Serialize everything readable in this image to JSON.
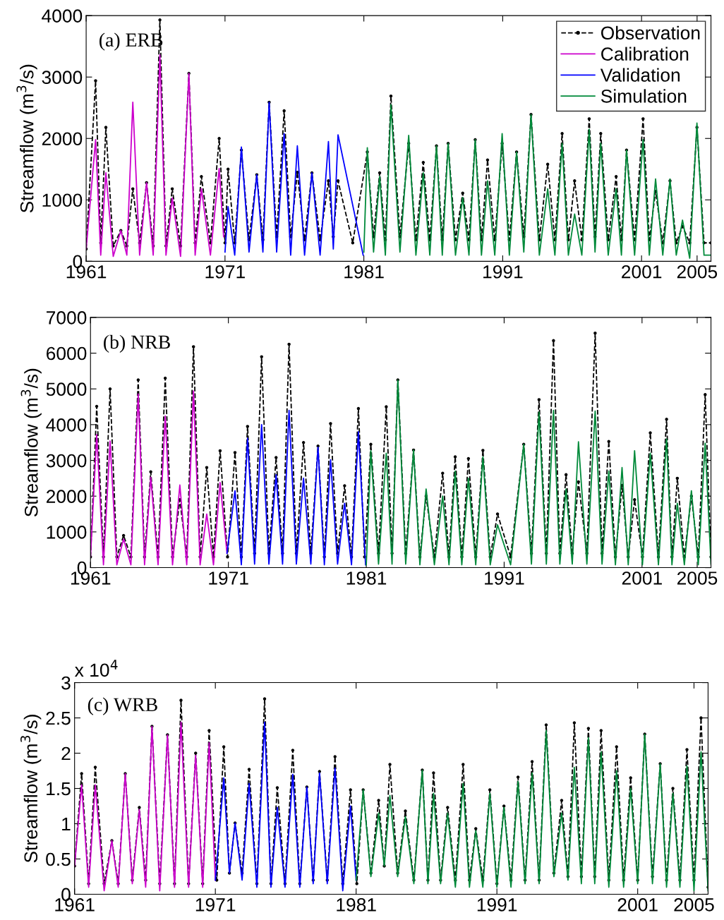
{
  "chart_data": [
    {
      "type": "line",
      "title": "(a) ERB",
      "ylabel": "Streamflow (m$^{3}$/s)",
      "xlim": [
        1961,
        2006
      ],
      "xticks": [
        1961,
        1971,
        1981,
        1991,
        2001,
        2005
      ],
      "ylim": [
        0,
        4000
      ],
      "yticks": [
        0,
        1000,
        2000,
        3000,
        4000
      ],
      "grid": false,
      "legend": "top right",
      "series": [
        {
          "name": "Observation",
          "color": "#000000",
          "line_style": "dashed",
          "marker": "circle",
          "x": [
            1961.0,
            1961.68,
            1962.05,
            1962.42,
            1962.95,
            1963.5,
            1963.93,
            1964.36,
            1964.85,
            1965.35,
            1965.83,
            1966.31,
            1966.75,
            1967.2,
            1967.8,
            1968.4,
            1968.85,
            1969.3,
            1969.95,
            1970.58,
            1971.0,
            1971.22,
            1971.7,
            1972.18,
            1972.73,
            1973.29,
            1973.73,
            1974.18,
            1974.72,
            1975.26,
            1975.73,
            1976.21,
            1976.73,
            1977.26,
            1977.85,
            1978.45,
            1978.8,
            1979.14,
            1980.2,
            1981.25,
            1981.7,
            1982.14,
            1982.55,
            1982.95,
            1983.6,
            1984.23,
            1984.75,
            1985.28,
            1985.75,
            1986.23,
            1986.65,
            1987.07,
            1987.6,
            1988.12,
            1988.57,
            1989.02,
            1989.47,
            1989.91,
            1990.43,
            1990.96,
            1991.48,
            1992.0,
            1992.52,
            1993.04,
            1993.64,
            1994.24,
            1994.76,
            1995.28,
            1995.73,
            1996.18,
            1996.7,
            1997.23,
            1997.65,
            1998.06,
            1998.6,
            1999.17,
            1999.55,
            1999.92,
            2000.5,
            2001.11,
            2001.56,
            2002.01,
            2002.53,
            2003.05,
            2003.5,
            2003.95,
            2004.47,
            2004.99,
            2005.5,
            2006.0
          ],
          "values": [
            200,
            2940,
            300,
            2180,
            250,
            500,
            250,
            1180,
            300,
            1280,
            250,
            3930,
            250,
            1180,
            250,
            3060,
            300,
            1380,
            300,
            2000,
            300,
            1500,
            300,
            1810,
            350,
            1410,
            350,
            2590,
            400,
            2450,
            400,
            1450,
            350,
            1440,
            350,
            1310,
            400,
            1310,
            300,
            1780,
            400,
            1440,
            350,
            2690,
            400,
            1920,
            350,
            1610,
            350,
            1880,
            350,
            1920,
            350,
            1110,
            350,
            1980,
            350,
            1650,
            350,
            1920,
            350,
            1780,
            400,
            2390,
            350,
            1580,
            350,
            2080,
            350,
            1310,
            350,
            2320,
            400,
            2080,
            350,
            1380,
            350,
            1810,
            350,
            2320,
            350,
            1140,
            300,
            1310,
            300,
            570,
            300,
            2180,
            300,
            300
          ]
        },
        {
          "name": "Calibration",
          "color": "#cc00cc",
          "line_style": "solid",
          "marker": "none",
          "x": [
            1961.0,
            1961.68,
            1962.05,
            1962.42,
            1962.95,
            1963.5,
            1963.93,
            1964.36,
            1964.85,
            1965.35,
            1965.83,
            1966.31,
            1966.75,
            1967.2,
            1967.8,
            1968.4,
            1968.85,
            1969.3,
            1969.95,
            1970.58,
            1970.9
          ],
          "values": [
            200,
            1980,
            100,
            1440,
            80,
            500,
            100,
            2590,
            100,
            1280,
            100,
            3360,
            100,
            1030,
            80,
            3060,
            100,
            1180,
            100,
            1510,
            400
          ]
        },
        {
          "name": "Validation",
          "color": "#0000ff",
          "line_style": "solid",
          "marker": "none",
          "x": [
            1971.0,
            1971.22,
            1971.7,
            1972.18,
            1972.73,
            1973.29,
            1973.73,
            1974.18,
            1974.72,
            1975.26,
            1975.73,
            1976.21,
            1976.73,
            1977.26,
            1977.85,
            1978.45,
            1978.8,
            1979.14,
            1980.95
          ],
          "values": [
            150,
            890,
            100,
            1860,
            150,
            1410,
            150,
            2590,
            150,
            2080,
            100,
            1880,
            100,
            1440,
            100,
            1950,
            200,
            2060,
            100
          ]
        },
        {
          "name": "Simulation",
          "color": "#008a3a",
          "line_style": "solid",
          "marker": "none",
          "x": [
            1981.0,
            1981.25,
            1981.7,
            1982.14,
            1982.55,
            1982.95,
            1983.6,
            1984.23,
            1984.75,
            1985.28,
            1985.75,
            1986.23,
            1986.65,
            1987.07,
            1987.6,
            1988.12,
            1988.57,
            1989.02,
            1989.47,
            1989.91,
            1990.43,
            1990.96,
            1991.48,
            1992.0,
            1992.52,
            1993.04,
            1993.64,
            1994.24,
            1994.76,
            1995.28,
            1995.73,
            1996.18,
            1996.7,
            1997.23,
            1997.65,
            1998.06,
            1998.6,
            1999.17,
            1999.55,
            1999.92,
            2000.5,
            2001.11,
            2001.56,
            2002.01,
            2002.53,
            2003.05,
            2003.5,
            2003.95,
            2004.47,
            2004.99,
            2005.5,
            2006.0
          ],
          "values": [
            150,
            1850,
            150,
            1380,
            100,
            2550,
            150,
            2050,
            100,
            1440,
            100,
            1880,
            100,
            1920,
            100,
            1040,
            100,
            1980,
            100,
            1310,
            100,
            2080,
            100,
            1780,
            150,
            2390,
            100,
            1180,
            100,
            1920,
            100,
            770,
            100,
            2150,
            150,
            1920,
            100,
            1180,
            100,
            1810,
            100,
            1980,
            100,
            1340,
            100,
            1340,
            100,
            670,
            50,
            2250,
            100,
            100
          ]
        }
      ]
    },
    {
      "type": "line",
      "title": "(b) NRB",
      "ylabel": "Streamflow (m$^{3}$/s)",
      "xlim": [
        1961,
        2006
      ],
      "xticks": [
        1961,
        1971,
        1981,
        1991,
        2001,
        2005
      ],
      "ylim": [
        0,
        7000
      ],
      "yticks": [
        0,
        1000,
        2000,
        3000,
        4000,
        5000,
        6000,
        7000
      ],
      "grid": false,
      "series": [
        {
          "color": "#000000",
          "line_style": "dashed",
          "marker": "circle",
          "x": [
            1961.0,
            1961.45,
            1961.94,
            1962.42,
            1962.91,
            1963.4,
            1963.93,
            1964.46,
            1964.92,
            1965.37,
            1965.9,
            1966.42,
            1966.95,
            1967.48,
            1967.98,
            1968.47,
            1968.95,
            1969.43,
            1969.92,
            1970.4,
            1970.94,
            1971.48,
            1971.94,
            1972.39,
            1972.9,
            1973.41,
            1973.94,
            1974.46,
            1974.93,
            1975.4,
            1975.93,
            1976.45,
            1976.98,
            1977.5,
            1977.96,
            1978.41,
            1978.92,
            1979.43,
            1979.93,
            1980.43,
            1980.88,
            1981.33,
            1981.89,
            1982.45,
            1982.87,
            1983.29,
            1983.86,
            1984.43,
            1984.89,
            1985.34,
            1985.94,
            1986.54,
            1987.0,
            1987.45,
            1987.93,
            1988.41,
            1988.94,
            1989.46,
            1989.99,
            1990.52,
            1991.47,
            1992.42,
            1992.98,
            1993.53,
            1994.06,
            1994.58,
            1995.04,
            1995.49,
            1995.94,
            1996.39,
            1997.0,
            1997.6,
            1998.1,
            1998.59,
            1999.07,
            1999.55,
            2000.0,
            2000.46,
            2001.03,
            2001.6,
            2002.19,
            2002.78,
            2003.17,
            2003.56,
            2004.07,
            2004.58,
            2005.08,
            2005.58,
            2006.0
          ],
          "values": [
            300,
            4510,
            300,
            5000,
            300,
            900,
            300,
            5250,
            300,
            2680,
            300,
            5300,
            300,
            1900,
            300,
            6180,
            300,
            2800,
            300,
            3270,
            300,
            3220,
            300,
            3950,
            400,
            5900,
            400,
            3080,
            400,
            6250,
            400,
            3500,
            400,
            3400,
            300,
            4030,
            400,
            2290,
            300,
            4450,
            300,
            3450,
            400,
            4500,
            400,
            5250,
            400,
            3290,
            300,
            2000,
            300,
            2640,
            300,
            3100,
            300,
            3050,
            300,
            3280,
            300,
            1500,
            300,
            3450,
            400,
            4700,
            400,
            6350,
            400,
            2600,
            400,
            2400,
            400,
            6560,
            400,
            3530,
            300,
            2300,
            300,
            1900,
            300,
            3770,
            300,
            4150,
            300,
            2500,
            300,
            2000,
            300,
            4840,
            300
          ]
        },
        {
          "color": "#cc00cc",
          "line_style": "solid",
          "marker": "none",
          "x": [
            1961.0,
            1961.45,
            1961.94,
            1962.42,
            1962.91,
            1963.4,
            1963.93,
            1964.46,
            1964.92,
            1965.37,
            1965.9,
            1966.42,
            1966.95,
            1967.48,
            1967.98,
            1968.47,
            1968.95,
            1969.43,
            1969.92,
            1970.4,
            1970.9
          ],
          "values": [
            300,
            3720,
            80,
            3540,
            80,
            800,
            80,
            4860,
            80,
            2530,
            80,
            4240,
            80,
            2310,
            80,
            4940,
            80,
            1500,
            80,
            2380,
            400
          ]
        },
        {
          "color": "#0000ff",
          "line_style": "solid",
          "marker": "none",
          "x": [
            1970.9,
            1971.48,
            1971.94,
            1972.39,
            1972.9,
            1973.41,
            1973.94,
            1974.46,
            1974.93,
            1975.4,
            1975.93,
            1976.45,
            1976.98,
            1977.5,
            1977.96,
            1978.41,
            1978.92,
            1979.43,
            1979.93,
            1980.43,
            1980.95
          ],
          "values": [
            400,
            2150,
            80,
            3620,
            100,
            4000,
            100,
            2600,
            100,
            4400,
            100,
            2500,
            100,
            3370,
            80,
            3020,
            100,
            1800,
            80,
            3800,
            80
          ]
        },
        {
          "color": "#008a3a",
          "line_style": "solid",
          "marker": "none",
          "x": [
            1981.0,
            1981.33,
            1981.89,
            1982.45,
            1982.87,
            1983.29,
            1983.86,
            1984.43,
            1984.89,
            1985.34,
            1985.94,
            1986.54,
            1987.0,
            1987.45,
            1987.93,
            1988.41,
            1988.94,
            1989.46,
            1989.99,
            1990.52,
            1991.47,
            1992.42,
            1992.98,
            1993.53,
            1994.06,
            1994.58,
            1995.04,
            1995.49,
            1995.94,
            1996.39,
            1997.0,
            1997.6,
            1998.1,
            1998.59,
            1999.07,
            1999.55,
            2000.0,
            2000.46,
            2001.03,
            2001.6,
            2002.19,
            2002.78,
            2003.17,
            2003.56,
            2004.07,
            2004.58,
            2005.08,
            2005.58,
            2006.0
          ],
          "values": [
            80,
            3270,
            100,
            3200,
            100,
            5250,
            100,
            3290,
            80,
            2200,
            80,
            2000,
            80,
            2700,
            80,
            2500,
            80,
            3100,
            80,
            1200,
            80,
            3450,
            100,
            4350,
            100,
            4400,
            100,
            2200,
            100,
            3520,
            100,
            4380,
            100,
            2700,
            80,
            2800,
            80,
            3270,
            80,
            3200,
            80,
            3600,
            80,
            1800,
            80,
            2150,
            80,
            3480,
            100
          ]
        }
      ]
    },
    {
      "type": "line",
      "title": "(c) WRB",
      "ylabel": "Streamflow (m$^{3}$/s)",
      "annotations": [
        "x 10$^{4}$"
      ],
      "xlim": [
        1961,
        2006
      ],
      "xticks": [
        1961,
        1971,
        1981,
        1991,
        2001,
        2005
      ],
      "ylim": [
        0,
        3
      ],
      "yticks": [
        0,
        0.5,
        1,
        1.5,
        2,
        2.5,
        3
      ],
      "grid": false,
      "series": [
        {
          "color": "#000000",
          "line_style": "dashed",
          "marker": "circle",
          "x": [
            1961.0,
            1961.5,
            1962.0,
            1962.47,
            1963.1,
            1963.65,
            1964.1,
            1964.6,
            1965.1,
            1965.6,
            1966.05,
            1966.5,
            1967.05,
            1967.6,
            1968.1,
            1968.56,
            1969.1,
            1969.6,
            1970.1,
            1970.56,
            1971.1,
            1971.6,
            1972.0,
            1972.4,
            1972.9,
            1973.4,
            1973.95,
            1974.5,
            1974.95,
            1975.4,
            1975.95,
            1976.5,
            1977.0,
            1977.5,
            1977.95,
            1978.4,
            1978.95,
            1979.5,
            1980.05,
            1980.6,
            1981.05,
            1981.5,
            1982.05,
            1982.6,
            1983.0,
            1983.4,
            1983.95,
            1984.5,
            1985.1,
            1985.7,
            1986.1,
            1986.5,
            1987.0,
            1987.5,
            1988.05,
            1988.6,
            1989.05,
            1989.5,
            1990.0,
            1990.5,
            1991.0,
            1991.5,
            1992.0,
            1992.5,
            1993.0,
            1993.5,
            1994.0,
            1994.5,
            1995.05,
            1995.6,
            1996.05,
            1996.5,
            1997.0,
            1997.5,
            1997.95,
            1998.4,
            1998.95,
            1999.5,
            2000.0,
            2000.5,
            2001.0,
            2001.5,
            2002.05,
            2002.6,
            2003.05,
            2003.5,
            2004.0,
            2004.5,
            2005.0,
            2005.5,
            2006.0
          ],
          "values": [
            0.4,
            1.71,
            0.15,
            1.8,
            0.15,
            0.76,
            0.15,
            1.71,
            0.2,
            1.23,
            0.2,
            2.38,
            0.15,
            2.26,
            0.15,
            2.75,
            0.15,
            2.0,
            0.15,
            2.32,
            0.2,
            2.09,
            0.3,
            1.01,
            0.3,
            1.77,
            0.15,
            2.77,
            0.15,
            1.51,
            0.15,
            2.04,
            0.15,
            1.52,
            0.2,
            1.74,
            0.2,
            1.95,
            0.15,
            1.48,
            0.15,
            1.48,
            0.3,
            1.33,
            0.4,
            1.84,
            0.3,
            1.18,
            0.2,
            1.76,
            0.2,
            1.72,
            0.2,
            1.23,
            0.2,
            1.84,
            0.2,
            0.93,
            0.2,
            1.48,
            0.15,
            1.25,
            0.2,
            1.66,
            0.2,
            1.88,
            0.2,
            2.4,
            0.3,
            1.33,
            0.25,
            2.43,
            0.25,
            2.35,
            0.25,
            2.32,
            0.2,
            2.09,
            0.2,
            1.65,
            0.2,
            2.27,
            0.25,
            1.85,
            0.2,
            1.5,
            0.2,
            2.05,
            0.2,
            2.5,
            0.1
          ]
        },
        {
          "color": "#cc00cc",
          "line_style": "solid",
          "marker": "none",
          "x": [
            1961.0,
            1961.5,
            1962.0,
            1962.47,
            1963.1,
            1963.65,
            1964.1,
            1964.6,
            1965.1,
            1965.6,
            1966.05,
            1966.5,
            1967.05,
            1967.6,
            1968.1,
            1968.56,
            1969.1,
            1969.6,
            1970.1,
            1970.56,
            1971.0
          ],
          "values": [
            0.4,
            1.55,
            0.1,
            1.55,
            0.05,
            0.76,
            0.1,
            1.71,
            0.15,
            1.2,
            0.1,
            2.38,
            0.05,
            2.26,
            0.1,
            2.44,
            0.1,
            1.97,
            0.1,
            2.15,
            0.2
          ]
        },
        {
          "color": "#0000ff",
          "line_style": "solid",
          "marker": "none",
          "x": [
            1971.0,
            1971.6,
            1972.0,
            1972.4,
            1972.9,
            1973.4,
            1973.95,
            1974.5,
            1974.95,
            1975.4,
            1975.95,
            1976.5,
            1977.0,
            1977.5,
            1977.95,
            1978.4,
            1978.95,
            1979.5,
            1980.05,
            1980.6,
            1981.0
          ],
          "values": [
            0.2,
            1.65,
            0.3,
            1.01,
            0.2,
            1.57,
            0.1,
            2.44,
            0.1,
            1.23,
            0.1,
            1.7,
            0.1,
            1.52,
            0.15,
            1.72,
            0.15,
            1.79,
            0.05,
            1.25,
            0.2
          ]
        },
        {
          "color": "#008a3a",
          "line_style": "solid",
          "marker": "none",
          "x": [
            1981.0,
            1981.5,
            1982.05,
            1982.6,
            1983.0,
            1983.4,
            1983.95,
            1984.5,
            1985.1,
            1985.7,
            1986.1,
            1986.5,
            1987.0,
            1987.5,
            1988.05,
            1988.6,
            1989.05,
            1989.5,
            1990.0,
            1990.5,
            1991.0,
            1991.5,
            1992.0,
            1992.5,
            1993.0,
            1993.5,
            1994.0,
            1994.5,
            1995.05,
            1995.6,
            1996.05,
            1996.5,
            1997.0,
            1997.5,
            1997.95,
            1998.4,
            1998.95,
            1999.5,
            2000.0,
            2000.5,
            2001.0,
            2001.5,
            2002.05,
            2002.6,
            2003.05,
            2003.5,
            2004.0,
            2004.5,
            2005.0,
            2005.5,
            2006.0
          ],
          "values": [
            0.2,
            1.48,
            0.25,
            1.15,
            0.4,
            1.4,
            0.25,
            1.1,
            0.15,
            1.76,
            0.15,
            1.43,
            0.15,
            1.15,
            0.1,
            1.57,
            0.1,
            0.9,
            0.1,
            1.43,
            0.1,
            1.23,
            0.1,
            1.6,
            0.15,
            1.72,
            0.15,
            2.32,
            0.25,
            1.15,
            0.2,
            1.8,
            0.15,
            2.22,
            0.15,
            2.02,
            0.1,
            1.75,
            0.1,
            1.5,
            0.15,
            2.27,
            0.15,
            1.85,
            0.1,
            1.43,
            0.1,
            1.82,
            0.05,
            2.02,
            0.05
          ]
        }
      ]
    }
  ]
}
